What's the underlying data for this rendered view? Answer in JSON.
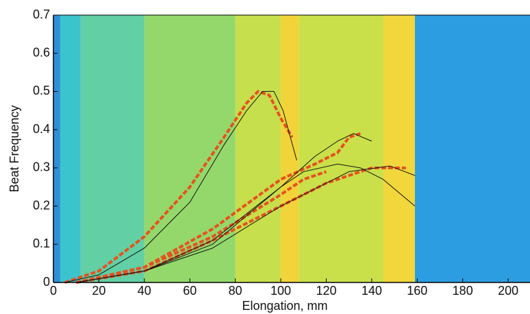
{
  "chart_data": {
    "type": "spectrogram",
    "x_label": "Elongation, mm",
    "y_label": "Beat Frequency",
    "xlim": [
      0,
      209.6
    ],
    "ylim": [
      0,
      0.7
    ],
    "xticks": [
      0,
      20,
      40,
      60,
      80,
      100,
      120,
      140,
      160,
      180,
      200
    ],
    "yticks": [
      0,
      0.1,
      0.2,
      0.3,
      0.4,
      0.5,
      0.6,
      0.7
    ],
    "grid": false,
    "regions": [
      {
        "x0": 0,
        "x1": 3,
        "color": "#2f8fd8"
      },
      {
        "x0": 3,
        "x1": 12,
        "color": "#3cc4cc"
      },
      {
        "x0": 12,
        "x1": 40,
        "color": "#62cfa4"
      },
      {
        "x0": 40,
        "x1": 80,
        "color": "#94d86c"
      },
      {
        "x0": 80,
        "x1": 100,
        "color": "#c6df4c"
      },
      {
        "x0": 100,
        "x1": 108,
        "color": "#f1d43a"
      },
      {
        "x0": 108,
        "x1": 145,
        "color": "#c9e04a"
      },
      {
        "x0": 145,
        "x1": 159,
        "color": "#f1d63c"
      },
      {
        "x0": 159,
        "x1": 209.6,
        "color": "#2c9de0"
      }
    ],
    "traces": [
      {
        "color": "#e8501e",
        "x": [
          5,
          20,
          40,
          60,
          75,
          85,
          90,
          95,
          100,
          105
        ],
        "values": [
          0,
          0.03,
          0.12,
          0.25,
          0.38,
          0.47,
          0.5,
          0.49,
          0.43,
          0.38
        ]
      },
      {
        "color": "#e8501e",
        "x": [
          10,
          40,
          70,
          100,
          115,
          125,
          130,
          135
        ],
        "values": [
          0,
          0.04,
          0.14,
          0.27,
          0.31,
          0.34,
          0.38,
          0.39
        ]
      },
      {
        "color": "#e8501e",
        "x": [
          10,
          40,
          70,
          100,
          110,
          120
        ],
        "values": [
          0,
          0.04,
          0.12,
          0.23,
          0.27,
          0.29
        ]
      },
      {
        "color": "#e8501e",
        "x": [
          10,
          40,
          70,
          100,
          120,
          140,
          155
        ],
        "values": [
          0,
          0.03,
          0.11,
          0.2,
          0.26,
          0.3,
          0.3
        ]
      }
    ],
    "series": [
      {
        "color": "#111111",
        "x": [
          5,
          20,
          40,
          60,
          75,
          85,
          92,
          97,
          101,
          107
        ],
        "values": [
          0,
          0.02,
          0.09,
          0.21,
          0.36,
          0.45,
          0.5,
          0.5,
          0.45,
          0.32
        ]
      },
      {
        "color": "#111111",
        "x": [
          10,
          40,
          70,
          100,
          115,
          125,
          132,
          140
        ],
        "values": [
          0,
          0.03,
          0.11,
          0.25,
          0.33,
          0.37,
          0.39,
          0.37
        ]
      },
      {
        "color": "#111111",
        "x": [
          10,
          40,
          70,
          100,
          110,
          125,
          135,
          145,
          159
        ],
        "values": [
          0,
          0.03,
          0.1,
          0.25,
          0.29,
          0.31,
          0.3,
          0.27,
          0.2
        ]
      },
      {
        "color": "#111111",
        "x": [
          10,
          40,
          70,
          100,
          130,
          148,
          159
        ],
        "values": [
          0,
          0.03,
          0.09,
          0.2,
          0.29,
          0.305,
          0.28
        ]
      }
    ]
  }
}
